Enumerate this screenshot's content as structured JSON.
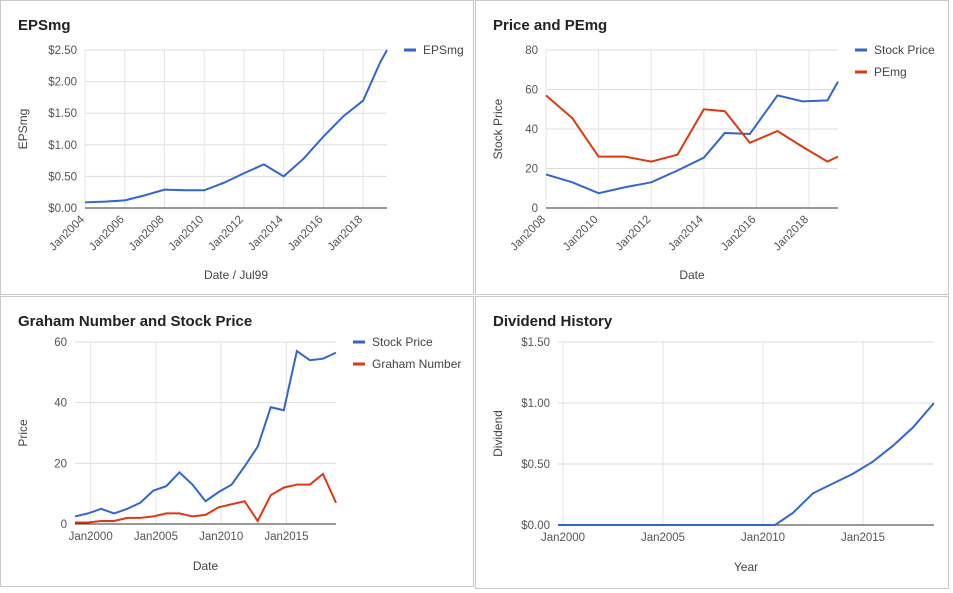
{
  "chart_data": [
    {
      "type": "line",
      "title": "EPSmg",
      "x_label": "Date / Jul99",
      "y_label": "EPSmg",
      "rotated_x_labels": true,
      "grid": true,
      "legend": "right",
      "x": [
        2004,
        2005,
        2006,
        2007,
        2008,
        2009,
        2010,
        2011,
        2012,
        2013,
        2014,
        2015,
        2016,
        2017,
        2018,
        2018.85,
        2019.2
      ],
      "series": [
        {
          "name": "EPSmg",
          "color": "#3366cc",
          "values": [
            0.09,
            0.1,
            0.12,
            0.2,
            0.29,
            0.28,
            0.28,
            0.4,
            0.55,
            0.69,
            0.5,
            0.78,
            1.13,
            1.45,
            1.7,
            2.3,
            2.5
          ]
        }
      ],
      "xlim": [
        2004,
        2019.2
      ],
      "xticks": [
        {
          "value": 2004,
          "label": "Jan2004"
        },
        {
          "value": 2006,
          "label": "Jan2006"
        },
        {
          "value": 2008,
          "label": "Jan2008"
        },
        {
          "value": 2010,
          "label": "Jan2010"
        },
        {
          "value": 2012,
          "label": "Jan2012"
        },
        {
          "value": 2014,
          "label": "Jan2014"
        },
        {
          "value": 2016,
          "label": "Jan2016"
        },
        {
          "value": 2018,
          "label": "Jan2018"
        }
      ],
      "ylim": [
        0,
        2.5
      ],
      "yticks": [
        {
          "value": 0,
          "label": "$0.00"
        },
        {
          "value": 0.5,
          "label": "$0.50"
        },
        {
          "value": 1,
          "label": "$1.00"
        },
        {
          "value": 1.5,
          "label": "$1.50"
        },
        {
          "value": 2,
          "label": "$2.00"
        },
        {
          "value": 2.5,
          "label": "$2.50"
        }
      ]
    },
    {
      "type": "line",
      "title": "Price and PEmg",
      "x_label": "Date",
      "y_label": "Stock Price",
      "rotated_x_labels": true,
      "grid": true,
      "legend": "right",
      "x": [
        2008,
        2009,
        2010,
        2011,
        2012,
        2013,
        2014,
        2014.8,
        2015.75,
        2016.8,
        2017.75,
        2018.7,
        2019.1
      ],
      "series": [
        {
          "name": "Stock Price",
          "color": "#3366cc",
          "values": [
            17,
            13,
            7.5,
            10.5,
            13,
            19,
            25.5,
            38,
            37.5,
            57,
            54,
            54.5,
            64
          ]
        },
        {
          "name": "PEmg",
          "color": "#dc3912",
          "values": [
            57,
            45.5,
            26,
            26,
            23.5,
            27,
            50,
            49,
            33,
            39,
            31,
            23.5,
            26
          ]
        }
      ],
      "xlim": [
        2008,
        2019.1
      ],
      "xticks": [
        {
          "value": 2008,
          "label": "Jan2008"
        },
        {
          "value": 2010,
          "label": "Jan2010"
        },
        {
          "value": 2012,
          "label": "Jan2012"
        },
        {
          "value": 2014,
          "label": "Jan2014"
        },
        {
          "value": 2016,
          "label": "Jan2016"
        },
        {
          "value": 2018,
          "label": "Jan2018"
        }
      ],
      "ylim": [
        0,
        80
      ],
      "yticks": [
        0,
        20,
        40,
        60,
        80
      ]
    },
    {
      "type": "line",
      "title": "Graham Number and Stock Price",
      "x_label": "Date",
      "y_label": "Price",
      "rotated_x_labels": false,
      "grid": true,
      "legend": "right",
      "x": [
        1998.8,
        1999.8,
        2000.8,
        2001.8,
        2002.8,
        2003.8,
        2004.8,
        2005.8,
        2006.8,
        2007.8,
        2008.8,
        2009.8,
        2010.8,
        2011.8,
        2012.8,
        2013.8,
        2014.8,
        2015.8,
        2016.8,
        2017.8,
        2018.8
      ],
      "series": [
        {
          "name": "Stock Price",
          "color": "#3366cc",
          "values": [
            2.5,
            3.5,
            5,
            3.5,
            5,
            7,
            11,
            12.5,
            17,
            13,
            7.5,
            10.5,
            13,
            19,
            25.5,
            38.5,
            37.5,
            57,
            54,
            54.5,
            56.5
          ]
        },
        {
          "name": "Graham Number",
          "color": "#dc3912",
          "values": [
            0.5,
            0.5,
            1,
            1,
            2,
            2,
            2.5,
            3.5,
            3.5,
            2.5,
            3,
            5.5,
            6.5,
            7.5,
            1,
            9.5,
            12,
            13,
            13,
            16.5,
            7
          ]
        }
      ],
      "xlim": [
        1998.8,
        2018.8
      ],
      "xticks": [
        {
          "value": 2000,
          "label": "Jan2000"
        },
        {
          "value": 2005,
          "label": "Jan2005"
        },
        {
          "value": 2010,
          "label": "Jan2010"
        },
        {
          "value": 2015,
          "label": "Jan2015"
        }
      ],
      "ylim": [
        0,
        60
      ],
      "yticks": [
        0,
        20,
        40,
        60
      ]
    },
    {
      "type": "line",
      "title": "Dividend History",
      "x_label": "Year",
      "y_label": "Dividend",
      "rotated_x_labels": false,
      "grid": true,
      "x": [
        1999.75,
        2010.6,
        2011.5,
        2012.5,
        2013.5,
        2014.5,
        2015.5,
        2016.5,
        2017.5,
        2018.55
      ],
      "series": [
        {
          "name": "Dividend",
          "color": "#3366cc",
          "values": [
            0,
            0,
            0.1,
            0.26,
            0.34,
            0.42,
            0.52,
            0.65,
            0.8,
            1.0
          ]
        }
      ],
      "xlim": [
        1999.75,
        2018.55
      ],
      "xticks": [
        {
          "value": 2000,
          "label": "Jan2000"
        },
        {
          "value": 2005,
          "label": "Jan2005"
        },
        {
          "value": 2010,
          "label": "Jan2010"
        },
        {
          "value": 2015,
          "label": "Jan2015"
        }
      ],
      "ylim": [
        0,
        1.5
      ],
      "yticks": [
        {
          "value": 0,
          "label": "$0.00"
        },
        {
          "value": 0.5,
          "label": "$0.50"
        },
        {
          "value": 1,
          "label": "$1.00"
        },
        {
          "value": 1.5,
          "label": "$1.50"
        }
      ]
    }
  ]
}
